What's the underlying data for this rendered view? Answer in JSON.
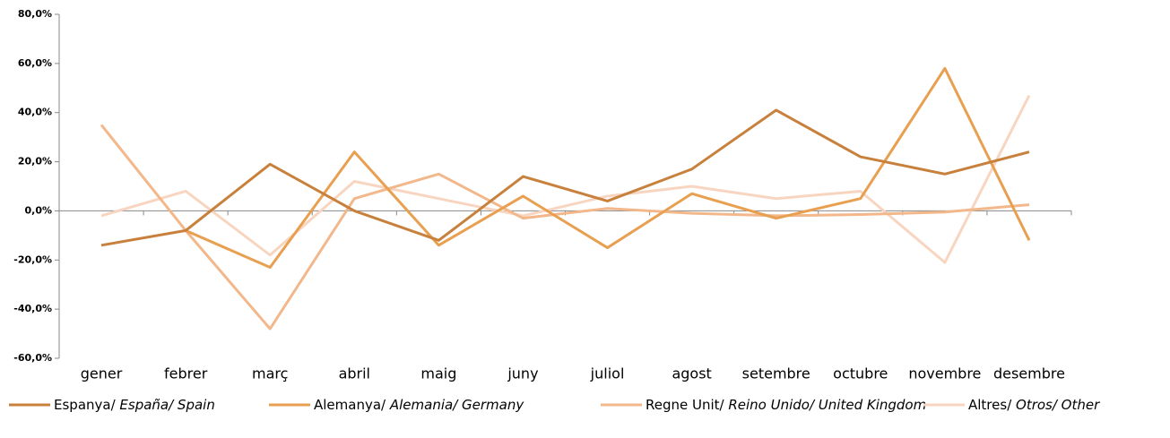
{
  "chart_data": {
    "type": "line",
    "categories": [
      "gener",
      "febrer",
      "març",
      "abril",
      "maig",
      "juny",
      "juliol",
      "agost",
      "setembre",
      "octubre",
      "novembre",
      "desembre"
    ],
    "series": [
      {
        "name": "Espanya/ España/ Spain",
        "color": "#c8813c",
        "values": [
          -14,
          -8,
          19,
          0,
          -12,
          14,
          4,
          17,
          41,
          22,
          15,
          24
        ]
      },
      {
        "name": "Alemanya/ Alemania/ Germany",
        "color": "#e8a050",
        "values": [
          null,
          -8,
          -23,
          24,
          -14,
          6,
          -15,
          7,
          -3,
          5,
          58,
          -12
        ]
      },
      {
        "name": "Regne Unit/ Reino Unido/ United Kingdom",
        "color": "#f2b78a",
        "values": [
          35,
          -8,
          -48,
          5,
          15,
          -3,
          1,
          -1,
          -2,
          -1.5,
          -0.5,
          2.5
        ]
      },
      {
        "name": "Altres/ Otros/ Other",
        "color": "#f8d5c0",
        "values": [
          -2,
          8,
          -18,
          12,
          5,
          -2,
          6,
          10,
          5,
          8,
          -21,
          47
        ]
      }
    ],
    "ylim": [
      -60,
      80
    ],
    "yticks": [
      {
        "value": -60,
        "label": "-60,0%"
      },
      {
        "value": -40,
        "label": "-40,0%"
      },
      {
        "value": -20,
        "label": "-20,0%"
      },
      {
        "value": 0,
        "label": "0,0%"
      },
      {
        "value": 20,
        "label": "20,0%"
      },
      {
        "value": 40,
        "label": "40,0%"
      },
      {
        "value": 60,
        "label": "60,0%"
      },
      {
        "value": 80,
        "label": "80,0%"
      }
    ],
    "legend": "bottom"
  }
}
